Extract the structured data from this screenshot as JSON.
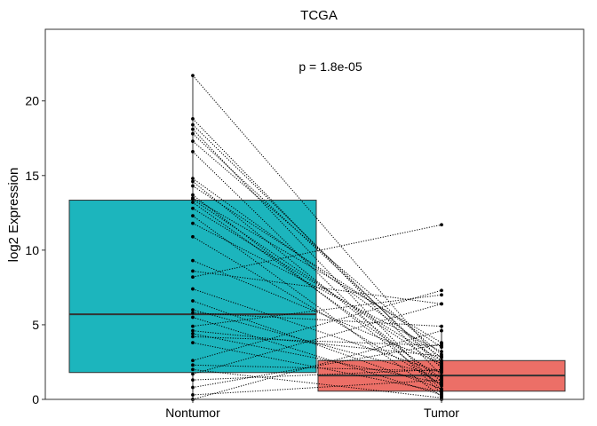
{
  "chart_data": {
    "type": "box",
    "title": "TCGA",
    "xlabel": "",
    "ylabel": "log2 Expression",
    "annotation": "p = 1.8e-05",
    "ylim": [
      0,
      24.8
    ],
    "yticks": [
      0,
      5,
      10,
      15,
      20
    ],
    "categories": [
      "Nontumor",
      "Tumor"
    ],
    "colors": {
      "Nontumor": "#1CB5BD",
      "Tumor": "#EC6F67"
    },
    "boxes": [
      {
        "name": "Nontumor",
        "q1": 1.8,
        "median": 5.7,
        "q3": 13.35,
        "whisker_low": 0.0,
        "whisker_high": 21.7
      },
      {
        "name": "Tumor",
        "q1": 0.55,
        "median": 1.6,
        "q3": 2.6,
        "whisker_low": 0.0,
        "whisker_high": 4.9
      }
    ],
    "pairs": [
      [
        21.7,
        2.5
      ],
      [
        18.8,
        1.6
      ],
      [
        18.4,
        2.1
      ],
      [
        18.1,
        0.6
      ],
      [
        17.8,
        2.3
      ],
      [
        17.3,
        3.0
      ],
      [
        16.6,
        0.4
      ],
      [
        14.8,
        2.8
      ],
      [
        14.6,
        1.2
      ],
      [
        14.3,
        3.5
      ],
      [
        13.7,
        0.9
      ],
      [
        13.5,
        3.8
      ],
      [
        13.4,
        2.2
      ],
      [
        13.2,
        1.4
      ],
      [
        12.8,
        2.6
      ],
      [
        12.3,
        0.2
      ],
      [
        11.8,
        3.2
      ],
      [
        10.9,
        1.0
      ],
      [
        9.3,
        2.4
      ],
      [
        8.6,
        6.4
      ],
      [
        8.2,
        11.7
      ],
      [
        7.4,
        1.8
      ],
      [
        6.6,
        0.7
      ],
      [
        6.0,
        1.5
      ],
      [
        5.8,
        4.9
      ],
      [
        5.5,
        0.3
      ],
      [
        4.9,
        7.0
      ],
      [
        4.6,
        2.9
      ],
      [
        4.4,
        1.1
      ],
      [
        4.2,
        3.6
      ],
      [
        3.8,
        0.5
      ],
      [
        2.6,
        7.3
      ],
      [
        2.3,
        1.9
      ],
      [
        2.0,
        0.1
      ],
      [
        1.7,
        6.4
      ],
      [
        1.3,
        2.0
      ],
      [
        0.8,
        3.7
      ],
      [
        0.3,
        1.3
      ],
      [
        0.0,
        4.6
      ],
      [
        0.0,
        0.0
      ]
    ]
  }
}
